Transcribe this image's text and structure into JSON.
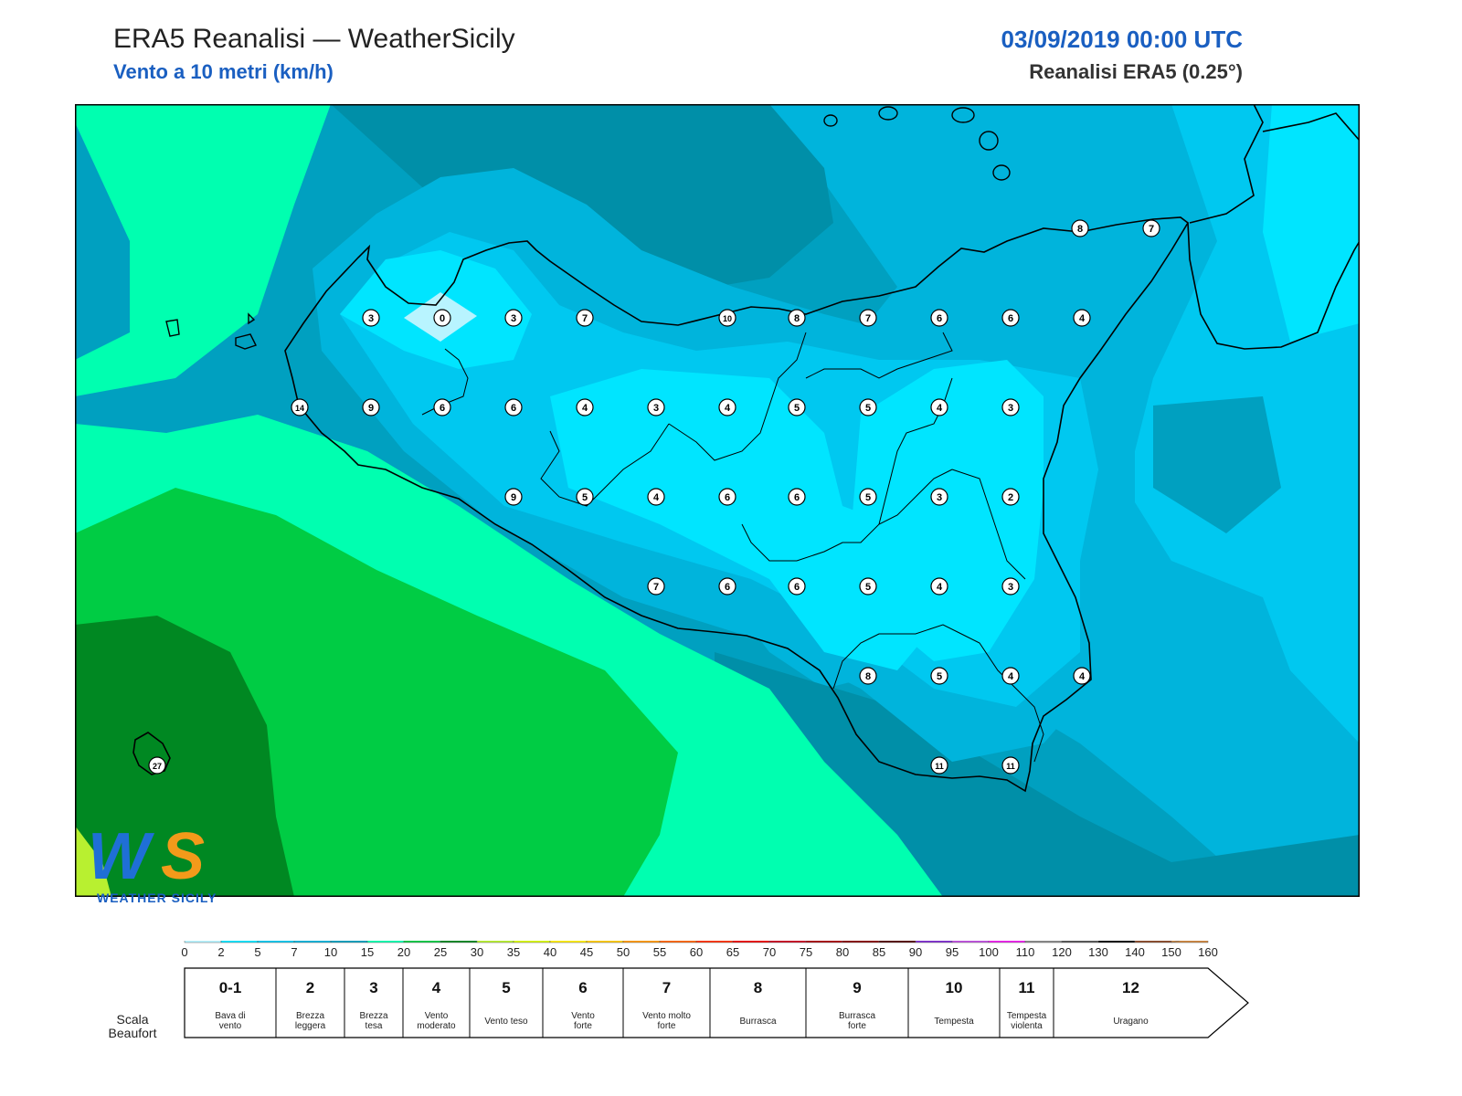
{
  "header": {
    "title": "ERA5 Reanalisi — WeatherSicily",
    "subtitle": "Vento a 10 metri (km/h)",
    "datetime": "03/09/2019 00:00 UTC",
    "source": "Reanalisi ERA5 (0.25°)"
  },
  "map": {
    "zone_colors": {
      "cyan_light": "#00e5ff",
      "cyan": "#00c8f0",
      "blue_cyan": "#00b4dc",
      "teal_blue": "#00a0c0",
      "teal": "#008fa8",
      "mint": "#00ffb0",
      "green": "#00cc44",
      "dark_green": "#008822",
      "lime": "#b8f030",
      "pale": "#b8f4ff"
    },
    "wind_values": [
      {
        "value": "3"
      },
      {
        "value": "0"
      },
      {
        "value": "3"
      },
      {
        "value": "7"
      },
      {
        "value": "10"
      },
      {
        "value": "8"
      },
      {
        "value": "7"
      },
      {
        "value": "6"
      },
      {
        "value": "6"
      },
      {
        "value": "4"
      },
      {
        "value": "14"
      },
      {
        "value": "9"
      },
      {
        "value": "6"
      },
      {
        "value": "6"
      },
      {
        "value": "4"
      },
      {
        "value": "3"
      },
      {
        "value": "4"
      },
      {
        "value": "5"
      },
      {
        "value": "5"
      },
      {
        "value": "4"
      },
      {
        "value": "3"
      },
      {
        "value": "9"
      },
      {
        "value": "5"
      },
      {
        "value": "4"
      },
      {
        "value": "6"
      },
      {
        "value": "6"
      },
      {
        "value": "5"
      },
      {
        "value": "3"
      },
      {
        "value": "2"
      },
      {
        "value": "7"
      },
      {
        "value": "6"
      },
      {
        "value": "6"
      },
      {
        "value": "5"
      },
      {
        "value": "4"
      },
      {
        "value": "3"
      },
      {
        "value": "8"
      },
      {
        "value": "5"
      },
      {
        "value": "4"
      },
      {
        "value": "4"
      },
      {
        "value": "11"
      },
      {
        "value": "11"
      },
      {
        "value": "8"
      },
      {
        "value": "7"
      },
      {
        "value": "27"
      }
    ],
    "logo_text": "WEATHER SICILY"
  },
  "colorbar": {
    "ticks": [
      "0",
      "2",
      "5",
      "7",
      "10",
      "15",
      "20",
      "25",
      "30",
      "35",
      "40",
      "45",
      "50",
      "55",
      "60",
      "65",
      "70",
      "75",
      "80",
      "85",
      "90",
      "95",
      "100",
      "110",
      "120",
      "130",
      "140",
      "150",
      "160"
    ],
    "colors": [
      "#b8f4ff",
      "#00e5ff",
      "#00c8f0",
      "#00b4dc",
      "#00a0c0",
      "#00ffb0",
      "#00cc44",
      "#008822",
      "#b8f030",
      "#d8f800",
      "#ffee00",
      "#ffcc00",
      "#ff9900",
      "#ff6600",
      "#ff3300",
      "#ee0000",
      "#cc0022",
      "#aa0011",
      "#880000",
      "#550000",
      "#8030d0",
      "#c050e0",
      "#ee20ee",
      "#888888",
      "#555555",
      "#000000",
      "#8b4a2a",
      "#cd853f"
    ]
  },
  "beaufort": {
    "label_line1": "Scala",
    "label_line2": "Beaufort",
    "cells": [
      {
        "num": "0-1",
        "desc1": "Bava di",
        "desc2": "vento"
      },
      {
        "num": "2",
        "desc1": "Brezza",
        "desc2": "leggera"
      },
      {
        "num": "3",
        "desc1": "Brezza",
        "desc2": "tesa"
      },
      {
        "num": "4",
        "desc1": "Vento",
        "desc2": "moderato"
      },
      {
        "num": "5",
        "desc1": "Vento teso",
        "desc2": ""
      },
      {
        "num": "6",
        "desc1": "Vento",
        "desc2": "forte"
      },
      {
        "num": "7",
        "desc1": "Vento molto",
        "desc2": "forte"
      },
      {
        "num": "8",
        "desc1": "Burrasca",
        "desc2": ""
      },
      {
        "num": "9",
        "desc1": "Burrasca",
        "desc2": "forte"
      },
      {
        "num": "10",
        "desc1": "Tempesta",
        "desc2": ""
      },
      {
        "num": "11",
        "desc1": "Tempesta",
        "desc2": "violenta"
      },
      {
        "num": "12",
        "desc1": "Uragano",
        "desc2": ""
      }
    ]
  }
}
